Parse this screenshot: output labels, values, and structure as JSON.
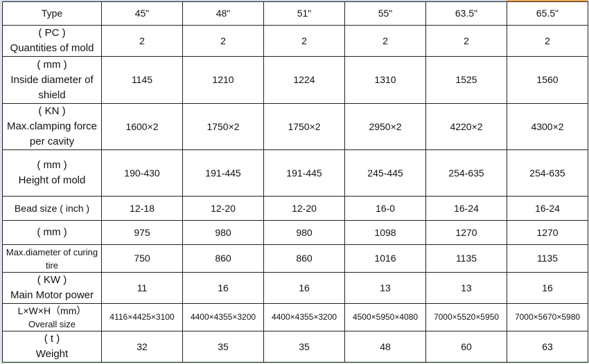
{
  "header": {
    "label": "Type",
    "values": [
      "45\"",
      "48\"",
      "51\"",
      "55\"",
      "63.5\"",
      "65.5\""
    ]
  },
  "rows": [
    {
      "unit": "( PC )",
      "label": "Quantities of mold",
      "values": [
        "2",
        "2",
        "2",
        "2",
        "2",
        "2"
      ]
    },
    {
      "unit": "( mm )",
      "label": "Inside diameter of shield",
      "values": [
        "1145",
        "1210",
        "1224",
        "1310",
        "1525",
        "1560"
      ]
    },
    {
      "unit": "( KN )",
      "label": "Max.clamping force per cavity",
      "values": [
        "1600×2",
        "1750×2",
        "1750×2",
        "2950×2",
        "4220×2",
        "4300×2"
      ]
    },
    {
      "unit": "( mm )",
      "label": "Height of mold",
      "values": [
        "190-430",
        "191-445",
        "191-445",
        "245-445",
        "254-635",
        "254-635"
      ]
    },
    {
      "unit": "",
      "label": "Bead size ( inch )",
      "values": [
        "12-18",
        "12-20",
        "12-20",
        "16-0",
        "16-24",
        "16-24"
      ]
    },
    {
      "unit": "( mm )",
      "label": "",
      "values": [
        "975",
        "980",
        "980",
        "1098",
        "1270",
        "1270"
      ]
    },
    {
      "unit": "",
      "label": "Max.diameter of curing tire",
      "values": [
        "750",
        "860",
        "860",
        "1016",
        "1135",
        "1135"
      ]
    },
    {
      "unit": "( KW )",
      "label": "Main Motor power",
      "values": [
        "11",
        "16",
        "16",
        "13",
        "13",
        "16"
      ]
    },
    {
      "unit": "L×W×H（mm）",
      "label": "Overall size",
      "values": [
        "4116×4425×3100",
        "4400×4355×3200",
        "4400×4355×3200",
        "4500×5950×4080",
        "7000×5520×5950",
        "7000×5670×5980"
      ]
    },
    {
      "unit": "( t )",
      "label": "Weight",
      "values": [
        "32",
        "35",
        "35",
        "48",
        "60",
        "63"
      ]
    }
  ]
}
